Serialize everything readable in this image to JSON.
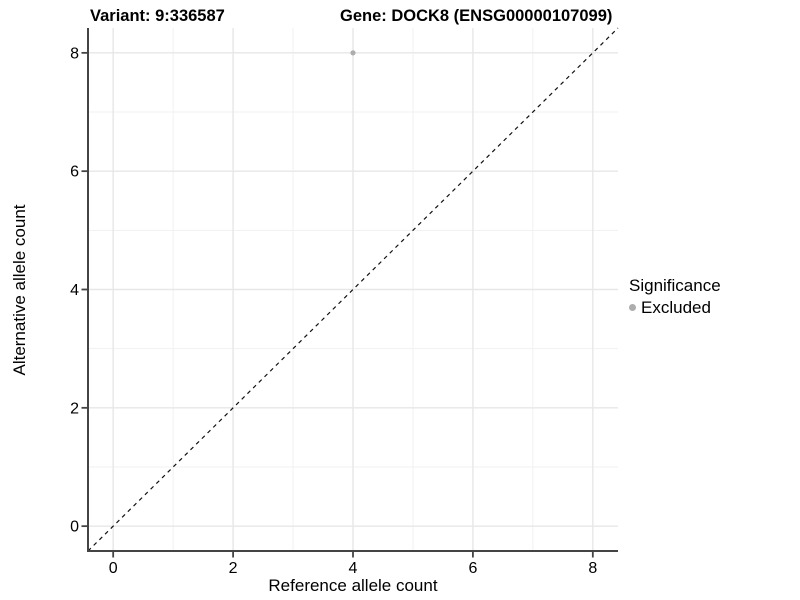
{
  "chart_data": {
    "type": "scatter",
    "title_left": "Variant: 9:336587",
    "title_right": "Gene: DOCK8 (ENSG00000107099)",
    "xlabel": "Reference allele count",
    "ylabel": "Alternative allele count",
    "xlim": [
      -0.42,
      8.42
    ],
    "ylim": [
      -0.42,
      8.42
    ],
    "x_major_ticks": [
      0,
      2,
      4,
      6,
      8
    ],
    "y_major_ticks": [
      0,
      2,
      4,
      6,
      8
    ],
    "x_minor_ticks": [
      1,
      3,
      5,
      7
    ],
    "y_minor_ticks": [
      1,
      3,
      5,
      7
    ],
    "grid": true,
    "reference_line": {
      "type": "identity",
      "slope": 1,
      "intercept": 0,
      "style": "dashed",
      "color": "#111111"
    },
    "series": [
      {
        "name": "Excluded",
        "color": "#adadad",
        "points": [
          {
            "x": 4,
            "y": 8
          }
        ]
      }
    ],
    "legend": {
      "title": "Significance",
      "position": "right",
      "entries": [
        {
          "label": "Excluded",
          "color": "#adadad"
        }
      ]
    },
    "style": {
      "background": "#ffffff",
      "grid_major_color": "#e7e7e7",
      "grid_minor_color": "#f1f1f1",
      "axis_line_color": "#444444",
      "tick_color": "#444444",
      "text_color": "#000000"
    }
  }
}
